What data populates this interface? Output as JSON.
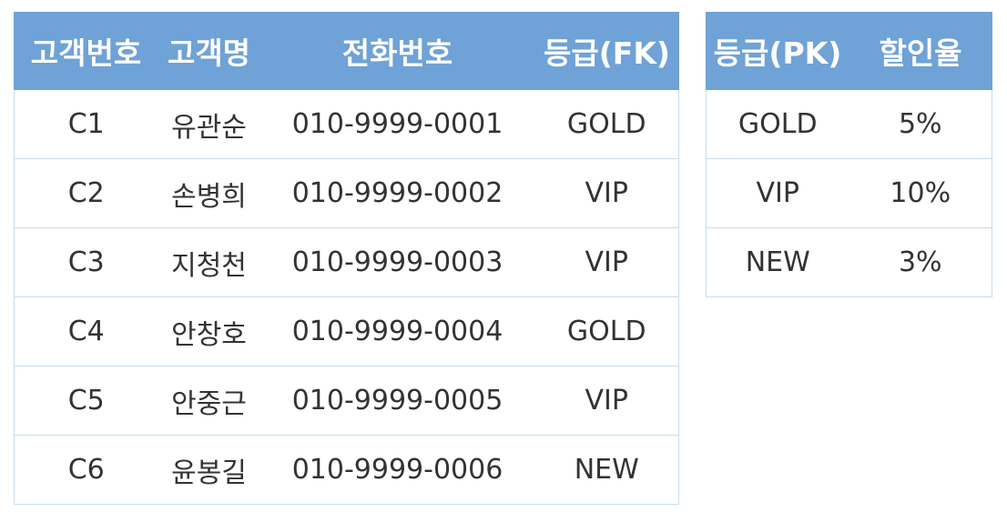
{
  "customer_table": {
    "headers": [
      "고객번호",
      "고객명",
      "전화번호",
      "등급(FK)"
    ],
    "rows": [
      [
        "C1",
        "유관순",
        "010-9999-0001",
        "GOLD"
      ],
      [
        "C2",
        "손병희",
        "010-9999-0002",
        "VIP"
      ],
      [
        "C3",
        "지청천",
        "010-9999-0003",
        "VIP"
      ],
      [
        "C4",
        "안창호",
        "010-9999-0004",
        "GOLD"
      ],
      [
        "C5",
        "안중근",
        "010-9999-0005",
        "VIP"
      ],
      [
        "C6",
        "윤봉길",
        "010-9999-0006",
        "NEW"
      ]
    ]
  },
  "grade_table": {
    "headers": [
      "등급(PK)",
      "할인율"
    ],
    "rows": [
      [
        "GOLD",
        "5%"
      ],
      [
        "VIP",
        "10%"
      ],
      [
        "NEW",
        "3%"
      ]
    ]
  },
  "colors": {
    "header_bg": "#6fa2d6",
    "header_text": "#ffffff",
    "grid_line": "#c6dcee"
  }
}
